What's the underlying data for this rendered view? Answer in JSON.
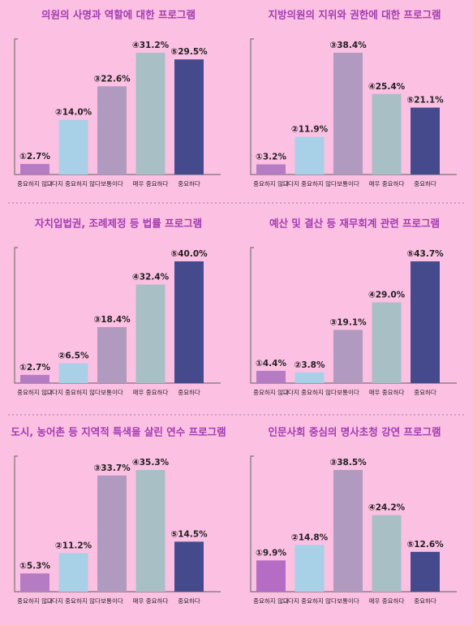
{
  "chart_data": [
    {
      "type": "bar",
      "title": "의원의 사명과 역할에 대한 프로그램",
      "categories": [
        "중요하지 않다",
        "그다지 중요하지 않다",
        "보통이다",
        "매우 중요하다",
        "중요하다"
      ],
      "values": [
        2.7,
        14.0,
        22.6,
        31.2,
        29.5
      ],
      "value_labels": [
        "①2.7%",
        "②14.0%",
        "③22.6%",
        "④31.2%",
        "⑤29.5%"
      ],
      "colors": [
        "#b57cc4",
        "#a8d0e6",
        "#b09ac0",
        "#a9bfc6",
        "#454a8c"
      ]
    },
    {
      "type": "bar",
      "title": "지방의원의 지위와 권한에 대한 프로그램",
      "categories": [
        "중요하지 않다",
        "그다지 중요하지 않다",
        "보통이다",
        "매우 중요하다",
        "중요하다"
      ],
      "values": [
        3.2,
        11.9,
        38.4,
        25.4,
        21.1
      ],
      "value_labels": [
        "①3.2%",
        "②11.9%",
        "③38.4%",
        "④25.4%",
        "⑤21.1%"
      ],
      "colors": [
        "#b57cc4",
        "#a8d0e6",
        "#b09ac0",
        "#a9bfc6",
        "#454a8c"
      ]
    },
    {
      "type": "bar",
      "title": "자치입법권, 조례제정 등 법률 프로그램",
      "categories": [
        "중요하지 않다",
        "그다지 중요하지 않다",
        "보통이다",
        "매우 중요하다",
        "중요하다"
      ],
      "values": [
        2.7,
        6.5,
        18.4,
        32.4,
        40.0
      ],
      "value_labels": [
        "①2.7%",
        "②6.5%",
        "③18.4%",
        "④32.4%",
        "⑤40.0%"
      ],
      "colors": [
        "#b57cc4",
        "#a8d0e6",
        "#b09ac0",
        "#a9bfc6",
        "#454a8c"
      ]
    },
    {
      "type": "bar",
      "title": "예산 및 결산 등 재무회계 관련 프로그램",
      "categories": [
        "중요하지 않다",
        "그다지 중요하지 않다",
        "보통이다",
        "매우 중요하다",
        "중요하다"
      ],
      "values": [
        4.4,
        3.8,
        19.1,
        29.0,
        43.7
      ],
      "value_labels": [
        "①4.4%",
        "②3.8%",
        "③19.1%",
        "④29.0%",
        "⑤43.7%"
      ],
      "colors": [
        "#b57cc4",
        "#a8d0e6",
        "#b09ac0",
        "#a9bfc6",
        "#454a8c"
      ]
    },
    {
      "type": "bar",
      "title": "도시, 농어촌 등 지역적 특색을 살린 연수 프로그램",
      "categories": [
        "중요하지 않다",
        "그다지 중요하지 않다",
        "보통이다",
        "매우 중요하다",
        "중요하다"
      ],
      "values": [
        5.3,
        11.2,
        33.7,
        35.3,
        14.5
      ],
      "value_labels": [
        "①5.3%",
        "②11.2%",
        "③33.7%",
        "④35.3%",
        "⑤14.5%"
      ],
      "colors": [
        "#b57cc4",
        "#a8d0e6",
        "#b09ac0",
        "#a9bfc6",
        "#454a8c"
      ]
    },
    {
      "type": "bar",
      "title": "인문사회 중심의 명사초청 강연 프로그램",
      "categories": [
        "중요하지 않다",
        "그다지 중요하지 않다",
        "보통이다",
        "매우 중요하다",
        "중요하다"
      ],
      "values": [
        9.9,
        14.8,
        38.5,
        24.2,
        12.6
      ],
      "value_labels": [
        "①9.9%",
        "②14.8%",
        "③38.5%",
        "④24.2%",
        "⑤12.6%"
      ],
      "colors": [
        "#b56cc4",
        "#a8d0e6",
        "#b09ac0",
        "#a9bfc6",
        "#454a8c"
      ]
    }
  ]
}
